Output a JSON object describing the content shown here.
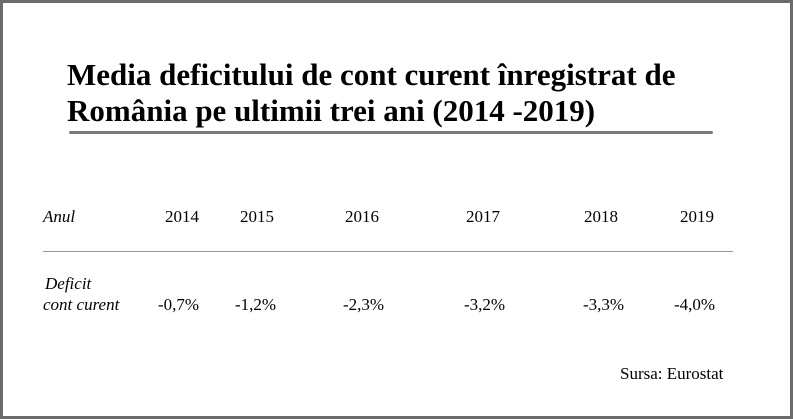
{
  "title_line1": "Media deficitului de cont curent înregistrat de",
  "title_line2": "România pe ultimii trei ani (2014 -2019)",
  "table": {
    "header_label": "Anul",
    "row_label_line1": "Deficit",
    "row_label_line2": "cont curent",
    "years": [
      "2014",
      "2015",
      "2016",
      "2017",
      "2018",
      "2019"
    ],
    "values": [
      "-0,7%",
      "-1,2%",
      "-2,3%",
      "-3,2%",
      "-3,3%",
      "-4,0%"
    ]
  },
  "source": "Sursa: Eurostat",
  "colors": {
    "border": "#6b6b6b",
    "title_rule": "#7a7a7a",
    "row_rule": "#9a9a9a",
    "text": "#000000"
  }
}
